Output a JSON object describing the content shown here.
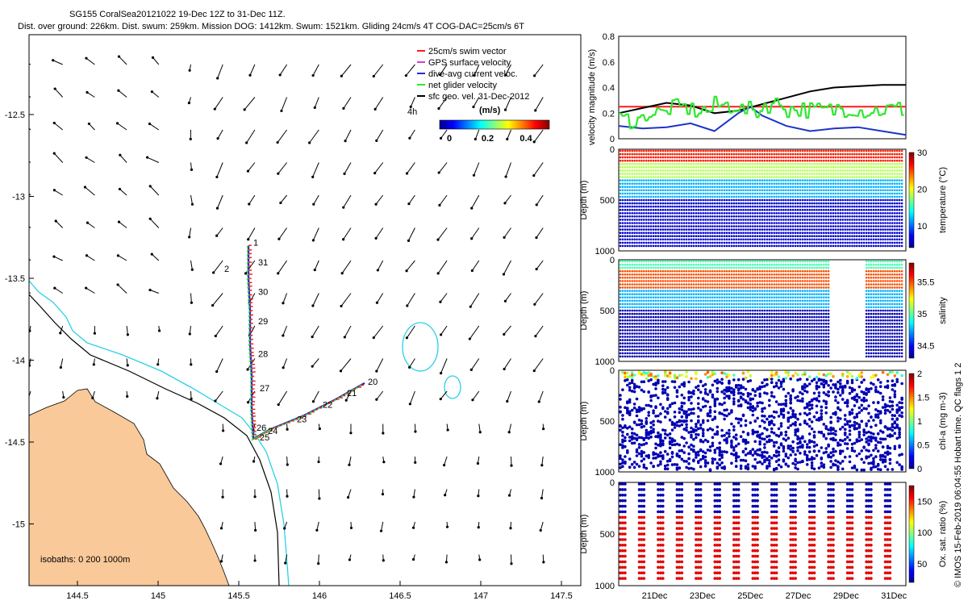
{
  "header": {
    "line1": "SG155 CoralSea20121022 19-Dec 12Z to 31-Dec 11Z.",
    "line2": "Dist. over ground: 226km. Dist. swum: 259km. Mission DOG: 1412km. Swum: 1521km. Gliding 24cm/s 4T COG-DAC=25cm/s 6T"
  },
  "side_credit": "© IMOS 15-Feb-2019 06:04:55 Hobart time. QC flags 1  2",
  "colors": {
    "land": "#f9c99a",
    "isobath_cyan": "#2ad0e8",
    "swim": "#ff1a1a",
    "gps": "#d040d0",
    "dac": "#1e32c8",
    "net": "#2ee82e",
    "geo": "#000000"
  },
  "map": {
    "legend": [
      {
        "label": "25cm/s swim vector",
        "color": "#ff1a1a"
      },
      {
        "label": "GPS surface velocity",
        "color": "#d040d0"
      },
      {
        "label": "dive-avg current veloc.",
        "color": "#1e32c8"
      },
      {
        "label": "net glider velocity",
        "color": "#2ee82e"
      },
      {
        "label": "sfc geo. vel. 31-Dec-2012",
        "color": "#000000"
      }
    ],
    "scale_label": "4h",
    "colorbar_title": "(m/s)",
    "colorbar_ticks": [
      "0",
      "0.2",
      "0.4"
    ],
    "isobath_note": "isobaths: 0   200  1000m",
    "x_ticks": [
      "144.5",
      "145",
      "145.5",
      "146",
      "146.5",
      "147",
      "147.5"
    ],
    "y_ticks": [
      "-12.5",
      "-13",
      "-13.5",
      "-14",
      "-14.5",
      "-15"
    ],
    "day_labels": [
      {
        "t": "1",
        "lon": 145.59,
        "lat": -13.3
      },
      {
        "t": "2",
        "lon": 145.41,
        "lat": -13.46
      },
      {
        "t": "31",
        "lon": 145.62,
        "lat": -13.42
      },
      {
        "t": "30",
        "lon": 145.62,
        "lat": -13.6
      },
      {
        "t": "29",
        "lon": 145.62,
        "lat": -13.78
      },
      {
        "t": "28",
        "lon": 145.62,
        "lat": -13.98
      },
      {
        "t": "27",
        "lon": 145.63,
        "lat": -14.19
      },
      {
        "t": "26",
        "lon": 145.61,
        "lat": -14.43
      },
      {
        "t": "25",
        "lon": 145.63,
        "lat": -14.49
      },
      {
        "t": "24",
        "lon": 145.68,
        "lat": -14.45
      },
      {
        "t": "23",
        "lon": 145.86,
        "lat": -14.38
      },
      {
        "t": "22",
        "lon": 146.02,
        "lat": -14.29
      },
      {
        "t": "21",
        "lon": 146.17,
        "lat": -14.22
      },
      {
        "t": "20",
        "lon": 146.3,
        "lat": -14.15
      }
    ]
  },
  "chart_data": [
    {
      "type": "line",
      "ylabel": "velocity magnitude (m/s)",
      "ylim": [
        0,
        0.8
      ],
      "y_ticks": [
        "0",
        "0.2",
        "0.4",
        "0.6",
        "0.8"
      ],
      "series": [
        {
          "color": "#ff1a1a",
          "x": [
            19.5,
            31.5
          ],
          "y": [
            0.25,
            0.25
          ]
        },
        {
          "color": "#000000",
          "x": [
            19.5,
            20.5,
            21.5,
            22.5,
            23.5,
            24.5,
            25.5,
            26.5,
            27.5,
            28.5,
            29.5,
            30.5,
            31.5
          ],
          "y": [
            0.2,
            0.24,
            0.28,
            0.26,
            0.2,
            0.22,
            0.27,
            0.32,
            0.37,
            0.4,
            0.41,
            0.42,
            0.42
          ]
        },
        {
          "color": "#1e32c8",
          "x": [
            19.5,
            20.5,
            21.5,
            22.5,
            23.5,
            24.5,
            25.0,
            25.5,
            26.5,
            27.5,
            28.5,
            29.5,
            30.5,
            31.5
          ],
          "y": [
            0.1,
            0.08,
            0.09,
            0.12,
            0.06,
            0.2,
            0.25,
            0.18,
            0.1,
            0.06,
            0.08,
            0.09,
            0.06,
            0.03
          ]
        },
        {
          "color": "#2ee82e",
          "x": [
            19.5,
            20.5,
            21.5,
            22.5,
            23.5,
            24.5,
            25.5,
            26.5,
            27.5,
            28.5,
            29.5,
            30.5,
            31.5
          ],
          "y": [
            0.15,
            0.2,
            0.24,
            0.22,
            0.26,
            0.22,
            0.27,
            0.23,
            0.22,
            0.24,
            0.22,
            0.23,
            0.22
          ]
        }
      ]
    },
    {
      "type": "heatmap",
      "ylabel": "Depth (m)",
      "y_ticks": [
        "0",
        "500",
        "1000"
      ],
      "ylim": [
        1000,
        0
      ],
      "colorbar_label": "temperature (°C)",
      "colorbar_ticks": [
        "10",
        "20",
        "30"
      ],
      "clim": [
        4,
        30
      ]
    },
    {
      "type": "heatmap",
      "ylabel": "Depth (m)",
      "y_ticks": [
        "0",
        "500",
        "1000"
      ],
      "ylim": [
        1000,
        0
      ],
      "colorbar_label": "salinity",
      "colorbar_ticks": [
        "34.5",
        "35",
        "35.5"
      ],
      "clim": [
        34.3,
        35.8
      ]
    },
    {
      "type": "heatmap",
      "ylabel": "Depth (m)",
      "y_ticks": [
        "0",
        "500",
        "1000"
      ],
      "ylim": [
        1000,
        0
      ],
      "colorbar_label": "chl-a (mg m-3)",
      "colorbar_ticks": [
        "0",
        "0.5",
        "1",
        "1.5",
        "2"
      ],
      "clim": [
        0,
        2
      ]
    },
    {
      "type": "heatmap",
      "ylabel": "Depth (m)",
      "y_ticks": [
        "0",
        "500",
        "1000"
      ],
      "ylim": [
        1000,
        0
      ],
      "colorbar_label": "Ox. sat. ratio (%)",
      "colorbar_ticks": [
        "50",
        "100",
        "150"
      ],
      "clim": [
        20,
        175
      ],
      "x_ticks": [
        "21Dec",
        "23Dec",
        "25Dec",
        "27Dec",
        "29Dec",
        "31Dec"
      ]
    }
  ]
}
